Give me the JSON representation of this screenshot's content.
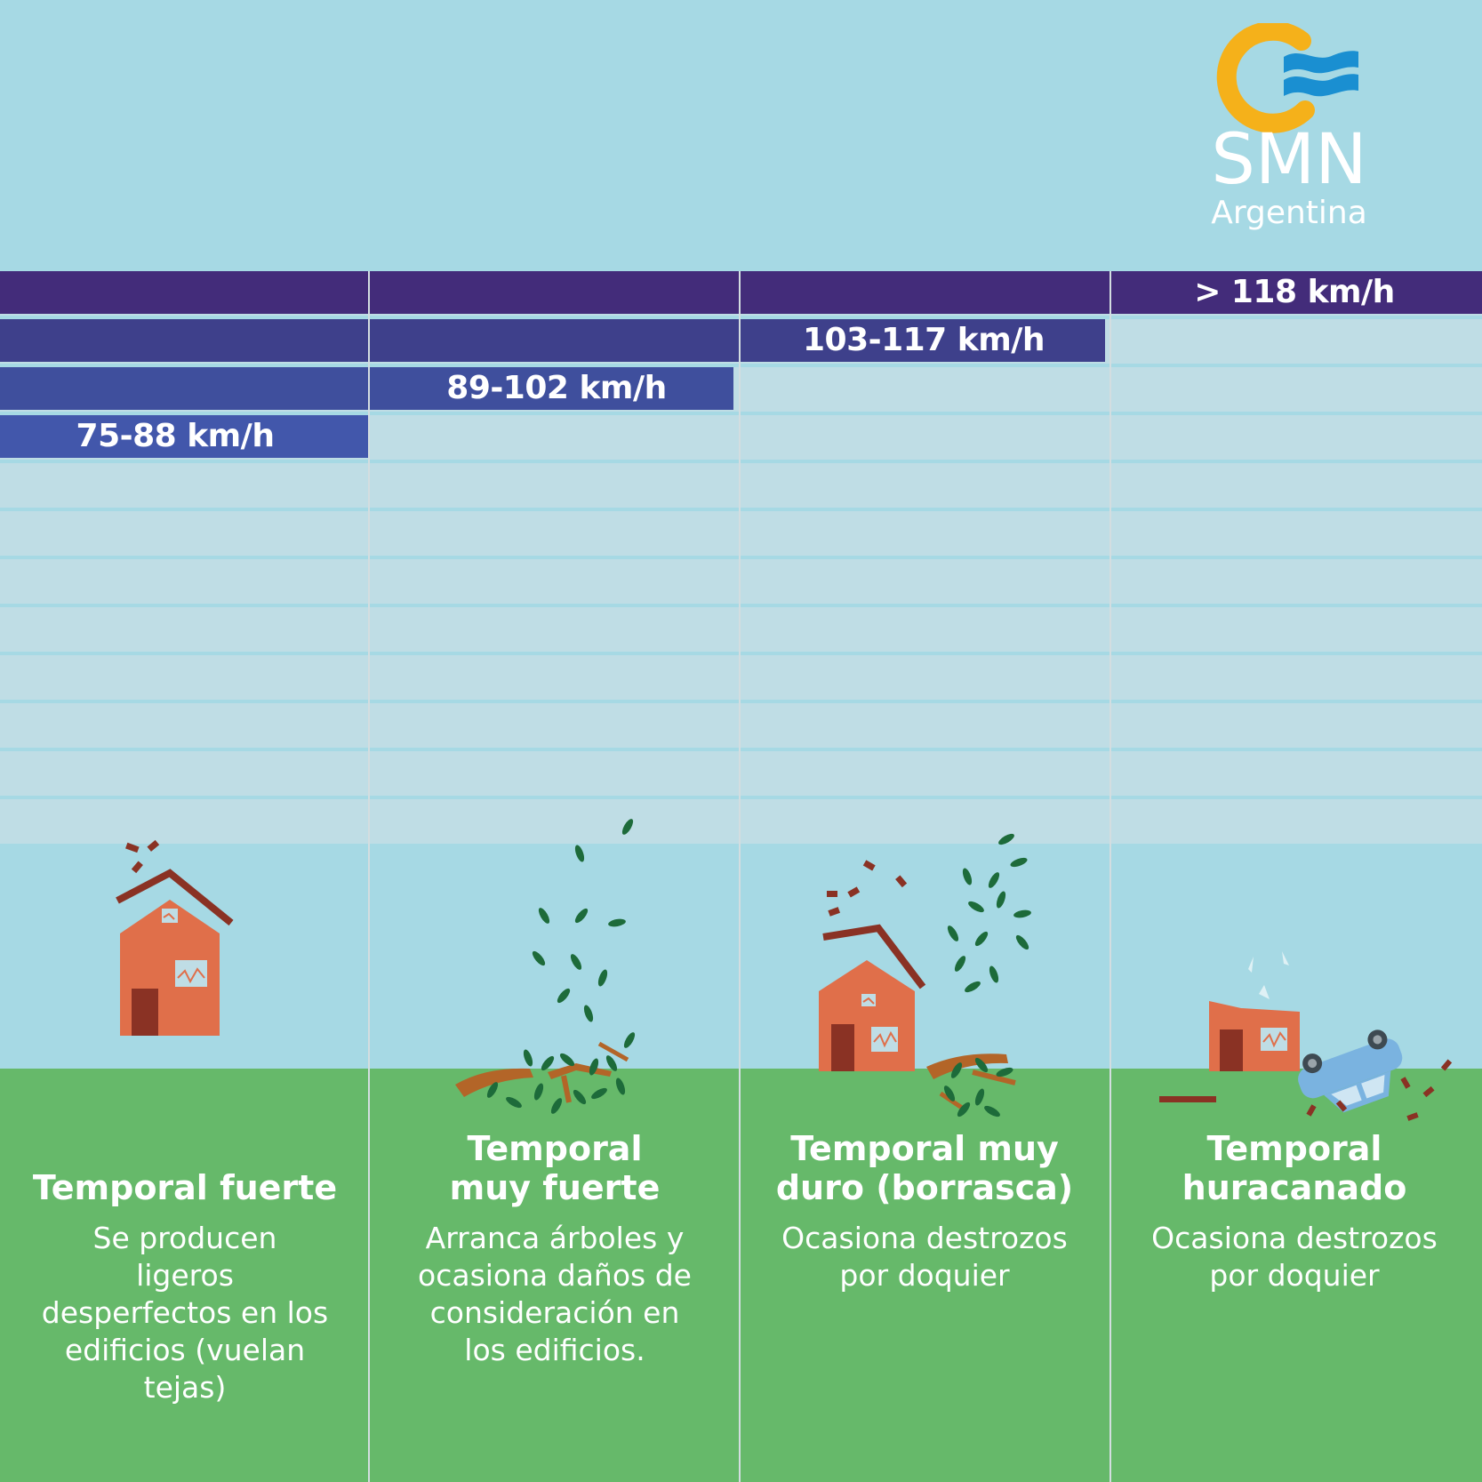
{
  "logo": {
    "name": "SMN",
    "subtitle": "Argentina",
    "colors": {
      "sun": "#f5b11a",
      "waves": "#1a8fd1"
    }
  },
  "columns": [
    {
      "speed": "75-88 km/h",
      "title": "Temporal fuerte",
      "description": "Se producen\nligeros\ndesperfectos en los\nedificios (vuelan\ntejas)",
      "level": 1,
      "icon": "house-tiles-flying-icon"
    },
    {
      "speed": "89-102 km/h",
      "title": "Temporal\nmuy fuerte",
      "description": "Arranca árboles y\nocasiona daños de\nconsideración en\nlos edificios.",
      "level": 2,
      "icon": "uprooted-tree-icon"
    },
    {
      "speed": "103-117 km/h",
      "title": "Temporal muy\nduro (borrasca)",
      "description": "Ocasiona destrozos\npor doquier",
      "level": 3,
      "icon": "damaged-house-roof-icon"
    },
    {
      "speed": "> 118 km/h",
      "title": "Temporal\nhuracanado",
      "description": "Ocasiona destrozos\npor doquier",
      "level": 4,
      "icon": "overturned-car-icon"
    }
  ],
  "colors": {
    "sky": "#a6d9e4",
    "ground": "#66b96a",
    "row": "#bfdde5",
    "bar_levels": [
      "#4257ab",
      "#3f4f9d",
      "#3e408b",
      "#432c7a"
    ]
  }
}
